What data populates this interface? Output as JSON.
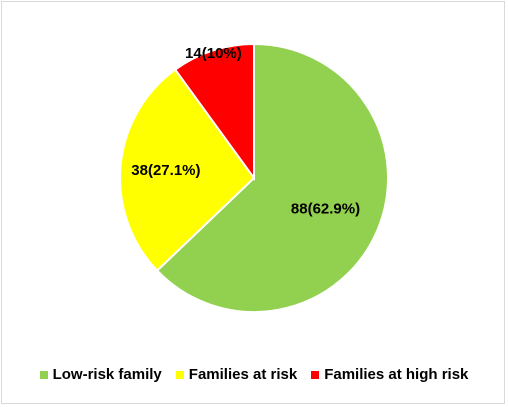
{
  "chart_data": {
    "type": "pie",
    "title": "",
    "slices": [
      {
        "name": "Low-risk family",
        "value": 88,
        "percent": 62.9,
        "label": "88(62.9%)",
        "color": "#92d050"
      },
      {
        "name": "Families at risk",
        "value": 38,
        "percent": 27.1,
        "label": "38(27.1%)",
        "color": "#ffff00"
      },
      {
        "name": "Families at high risk",
        "value": 14,
        "percent": 10.0,
        "label": "14(10%)",
        "color": "#ff0000"
      }
    ],
    "legend_position": "bottom"
  }
}
